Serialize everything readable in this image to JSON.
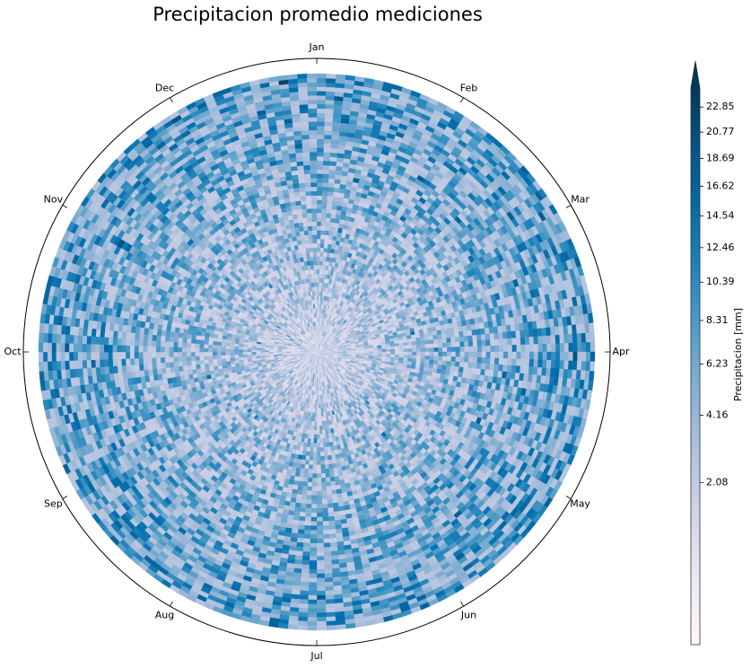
{
  "chart_data": {
    "type": "heatmap",
    "title": "Precipitacion promedio mediciones",
    "projection": "polar",
    "angular_ticks": [
      "Jan",
      "Feb",
      "Mar",
      "Apr",
      "May",
      "Jun",
      "Jul",
      "Aug",
      "Sep",
      "Oct",
      "Nov",
      "Dec"
    ],
    "angular_direction": "clockwise",
    "zero_location": "top",
    "colormap": "PuBu",
    "colorbar": {
      "label": "Precipitacion [mm]",
      "scale": "sqrt",
      "ticks": [
        2.08,
        4.16,
        6.23,
        8.31,
        10.39,
        12.46,
        14.54,
        16.62,
        18.69,
        20.77,
        22.85
      ],
      "tick_labels": [
        "2.08",
        "4.16",
        "6.23",
        "8.31",
        "10.39",
        "12.46",
        "14.54",
        "16.62",
        "18.69",
        "20.77",
        "22.85"
      ],
      "range": [
        0,
        24.5
      ],
      "extend": "max"
    },
    "grid": false,
    "colors": {
      "low": "#fff7fb",
      "mid": "#74a9cf",
      "high": "#023858"
    }
  }
}
